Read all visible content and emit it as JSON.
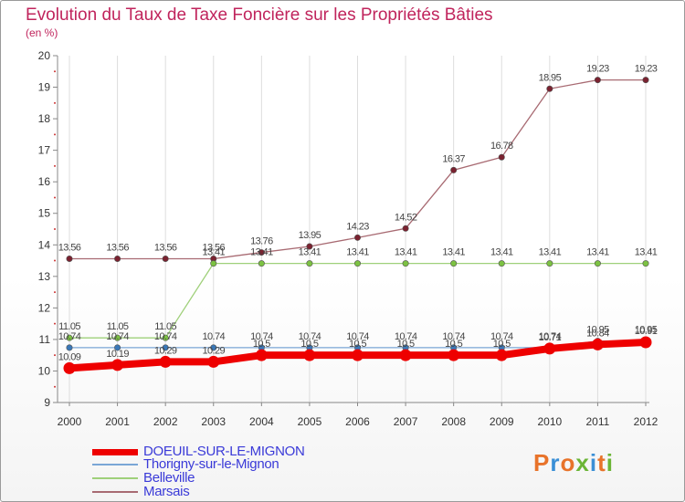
{
  "header": {
    "title": "Evolution du Taux de Taxe Foncière sur les Propriétés Bâties",
    "unit": "(en %)"
  },
  "logo": {
    "text": "Proxiti",
    "colors": [
      "#e8732a",
      "#3a8fd6",
      "#e8732a",
      "#6bb536",
      "#3a8fd6",
      "#e8732a",
      "#6bb536"
    ]
  },
  "chart_data": {
    "type": "line",
    "title": "Evolution du Taux de Taxe Foncière sur les Propriétés Bâties",
    "ylabel": "(en %)",
    "xlabel": "",
    "ylim": [
      9,
      20
    ],
    "yticks": [
      "9",
      "10",
      "11",
      "12",
      "13",
      "14",
      "15",
      "16",
      "17",
      "18",
      "19",
      "20"
    ],
    "categories": [
      "2000",
      "2001",
      "2002",
      "2003",
      "2004",
      "2005",
      "2006",
      "2007",
      "2008",
      "2009",
      "2010",
      "2011",
      "2012"
    ],
    "grid": "vertical",
    "legend_position": "bottom-left",
    "series": [
      {
        "name": "Marsais",
        "color": "#7a2230",
        "line_color": "#a86a72",
        "values": [
          13.56,
          13.56,
          13.56,
          13.56,
          13.76,
          13.95,
          14.23,
          14.52,
          16.37,
          16.78,
          18.95,
          19.23,
          19.23
        ],
        "labels": [
          "13.56",
          "13.56",
          "13.56",
          "13.56",
          "13.76",
          "13.95",
          "14.23",
          "14.52",
          "16.37",
          "16.78",
          "18.95",
          "19.23",
          "19.23"
        ]
      },
      {
        "name": "Belleville",
        "color": "#7cc242",
        "line_color": "#9fd07a",
        "values": [
          11.05,
          11.05,
          11.05,
          13.41,
          13.41,
          13.41,
          13.41,
          13.41,
          13.41,
          13.41,
          13.41,
          13.41,
          13.41
        ],
        "labels": [
          "11.05",
          "11.05",
          "11.05",
          "13.41",
          "13.41",
          "13.41",
          "13.41",
          "13.41",
          "13.41",
          "13.41",
          "13.41",
          "13.41",
          "13.41"
        ]
      },
      {
        "name": "Thorigny-sur-le-Mignon",
        "color": "#3a78b8",
        "line_color": "#7aa6d6",
        "values": [
          10.74,
          10.74,
          10.74,
          10.74,
          10.74,
          10.74,
          10.74,
          10.74,
          10.74,
          10.74,
          10.74,
          10.95,
          10.95
        ],
        "labels": [
          "10.74",
          "10.74",
          "10.74",
          "10.74",
          "10.74",
          "10.74",
          "10.74",
          "10.74",
          "10.74",
          "10.74",
          "10.74",
          "10.95",
          "10.95"
        ]
      },
      {
        "name": "DOEUIL-SUR-LE-MIGNON",
        "color": "#ee0000",
        "line_color": "#ee0000",
        "values": [
          10.09,
          10.19,
          10.29,
          10.29,
          10.5,
          10.5,
          10.5,
          10.5,
          10.5,
          10.5,
          10.71,
          10.84,
          10.91
        ],
        "labels": [
          "10.09",
          "10.19",
          "10.29",
          "10.29",
          "10.5",
          "10.5",
          "10.5",
          "10.5",
          "10.5",
          "10.5",
          "10.71",
          "10.84",
          "10.91"
        ]
      }
    ]
  },
  "legend": {
    "items": [
      {
        "label": "DOEUIL-SUR-LE-MIGNON",
        "color": "#ee0000"
      },
      {
        "label": "Thorigny-sur-le-Mignon",
        "color": "#7aa6d6"
      },
      {
        "label": "Belleville",
        "color": "#9fd07a"
      },
      {
        "label": "Marsais",
        "color": "#a86a72"
      }
    ]
  }
}
